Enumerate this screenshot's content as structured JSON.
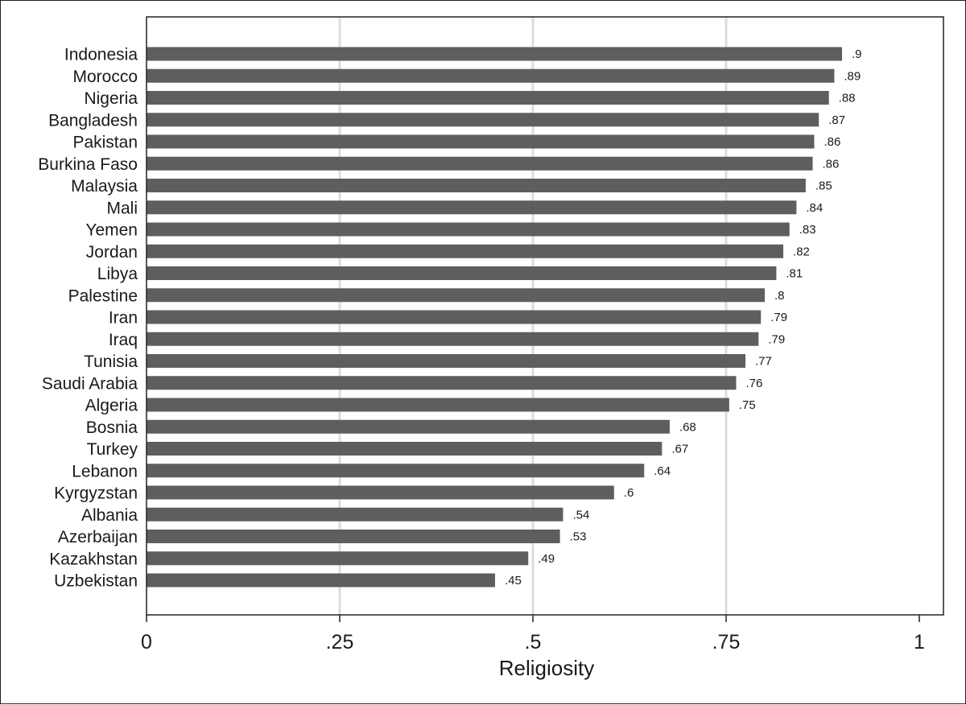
{
  "chart_data": {
    "type": "bar",
    "orientation": "horizontal",
    "xlabel": "Religiosity",
    "xlim": [
      0,
      1
    ],
    "grid": true,
    "bar_color": "#5e5e5e",
    "grid_color": "#dcdcdc",
    "categories": [
      "Indonesia",
      "Morocco",
      "Nigeria",
      "Bangladesh",
      "Pakistan",
      "Burkina Faso",
      "Malaysia",
      "Mali",
      "Yemen",
      "Jordan",
      "Libya",
      "Palestine",
      "Iran",
      "Iraq",
      "Tunisia",
      "Saudi Arabia",
      "Algeria",
      "Bosnia",
      "Turkey",
      "Lebanon",
      "Kyrgyzstan",
      "Albania",
      "Azerbaijan",
      "Kazakhstan",
      "Uzbekistan"
    ],
    "values": [
      0.9,
      0.89,
      0.883,
      0.87,
      0.864,
      0.862,
      0.853,
      0.841,
      0.832,
      0.824,
      0.815,
      0.8,
      0.795,
      0.792,
      0.775,
      0.763,
      0.754,
      0.677,
      0.667,
      0.644,
      0.605,
      0.539,
      0.535,
      0.494,
      0.451
    ],
    "value_labels": [
      ".9",
      ".89",
      ".88",
      ".87",
      ".86",
      ".86",
      ".85",
      ".84",
      ".83",
      ".82",
      ".81",
      ".8",
      ".79",
      ".79",
      ".77",
      ".76",
      ".75",
      ".68",
      ".67",
      ".64",
      ".6",
      ".54",
      ".53",
      ".49",
      ".45"
    ],
    "x_ticks": [
      0,
      0.25,
      0.5,
      0.75,
      1
    ],
    "x_tick_labels": [
      "0",
      ".25",
      ".5",
      ".75",
      "1"
    ]
  }
}
